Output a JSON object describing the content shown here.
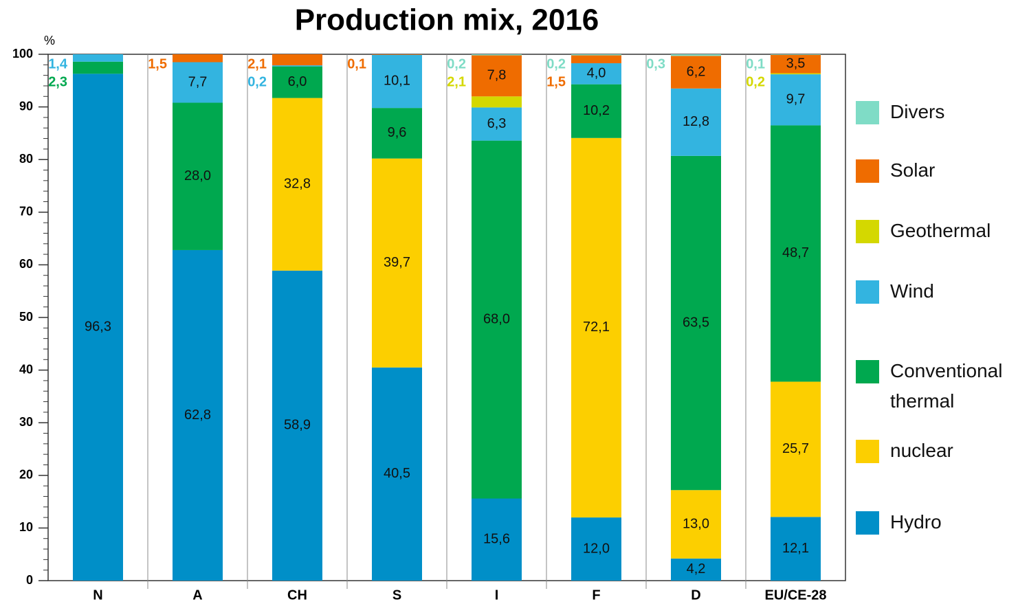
{
  "chart_data": {
    "type": "stacked_bar",
    "title": "Production mix, 2016",
    "ylabel": "%",
    "categories": [
      "N",
      "A",
      "CH",
      "S",
      "I",
      "F",
      "D",
      "EU/CE-28"
    ],
    "series": [
      {
        "name": "Hydro",
        "color": "#008fc8",
        "values": [
          96.3,
          62.8,
          58.9,
          40.5,
          15.6,
          12.0,
          4.2,
          12.1
        ],
        "value_labels": [
          "96,3",
          "62,8",
          "58,9",
          "40,5",
          "15,6",
          "12,0",
          "4,2",
          "12,1"
        ]
      },
      {
        "name": "nuclear",
        "color": "#fccf00",
        "values": [
          null,
          null,
          32.8,
          39.7,
          null,
          72.1,
          13.0,
          25.7
        ],
        "value_labels": [
          null,
          null,
          "32,8",
          "39,7",
          null,
          "72,1",
          "13,0",
          "25,7"
        ]
      },
      {
        "name": "Conventional thermal",
        "color": "#00a84f",
        "values": [
          2.3,
          28.0,
          6.0,
          9.6,
          68.0,
          10.2,
          63.5,
          48.7
        ],
        "value_labels": [
          "2,3",
          "28,0",
          "6,0",
          "9,6",
          "68,0",
          "10,2",
          "63,5",
          "48,7"
        ]
      },
      {
        "name": "Wind",
        "color": "#33b4e0",
        "values": [
          1.4,
          7.7,
          0.2,
          10.1,
          6.3,
          4.0,
          12.8,
          9.7
        ],
        "value_labels": [
          "1,4",
          "7,7",
          "0,2",
          "10,1",
          "6,3",
          "4,0",
          "12,8",
          "9,7"
        ]
      },
      {
        "name": "Geothermal",
        "color": "#d4d800",
        "values": [
          null,
          null,
          null,
          null,
          2.1,
          null,
          null,
          0.2
        ],
        "value_labels": [
          null,
          null,
          null,
          null,
          "2,1",
          null,
          null,
          "0,2"
        ]
      },
      {
        "name": "Solar",
        "color": "#ef6c00",
        "values": [
          null,
          1.5,
          2.1,
          0.1,
          7.8,
          1.5,
          6.2,
          3.5
        ],
        "value_labels": [
          null,
          "1,5",
          "2,1",
          "0,1",
          "7,8",
          "1,5",
          "6,2",
          "3,5"
        ]
      },
      {
        "name": "Divers",
        "color": "#7fdcc6",
        "values": [
          null,
          null,
          null,
          null,
          0.2,
          0.2,
          0.3,
          0.1
        ],
        "value_labels": [
          null,
          null,
          null,
          null,
          "0,2",
          "0,2",
          "0,3",
          "0,1"
        ]
      }
    ],
    "ylim": [
      0,
      100
    ],
    "yticks": [
      0,
      10,
      20,
      30,
      40,
      50,
      60,
      70,
      80,
      90,
      100
    ],
    "legend": "right"
  }
}
